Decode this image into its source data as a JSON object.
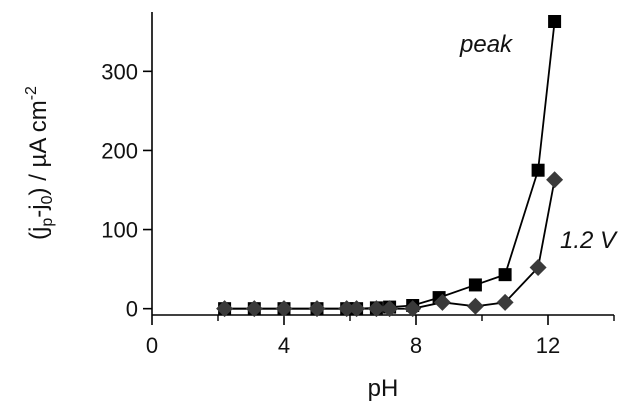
{
  "chart_data": {
    "type": "line",
    "xlabel": "pH",
    "ylabel": {
      "prefix": "(j",
      "sub1": "p",
      "mid": "-j",
      "sub2": "0",
      "rest": ") / µA cm",
      "sup": "-2"
    },
    "xlim": [
      0,
      14
    ],
    "ylim": [
      -8,
      375
    ],
    "xticks": [
      0,
      4,
      8,
      12
    ],
    "xminor_ticks": [
      2,
      6,
      10,
      14
    ],
    "yticks": [
      0,
      100,
      200,
      300
    ],
    "grid": false,
    "series": [
      {
        "name": "peak",
        "marker": "square",
        "color": "#000000",
        "x": [
          2.2,
          3.1,
          4.0,
          5.0,
          5.9,
          6.2,
          6.8,
          7.2,
          7.9,
          8.7,
          9.8,
          10.7,
          11.7,
          12.2
        ],
        "y": [
          0,
          0,
          0,
          0,
          0,
          0,
          1,
          2,
          4,
          14,
          30,
          43,
          175,
          363
        ]
      },
      {
        "name": "1.2 V",
        "marker": "diamond",
        "color": "#3a3a3a",
        "x": [
          2.2,
          3.1,
          4.0,
          5.0,
          5.9,
          6.2,
          6.8,
          7.2,
          7.9,
          8.8,
          9.8,
          10.7,
          11.7,
          12.2
        ],
        "y": [
          0,
          0,
          0,
          0,
          0,
          0,
          0,
          0,
          0,
          8,
          3,
          8,
          52,
          163
        ]
      }
    ]
  }
}
